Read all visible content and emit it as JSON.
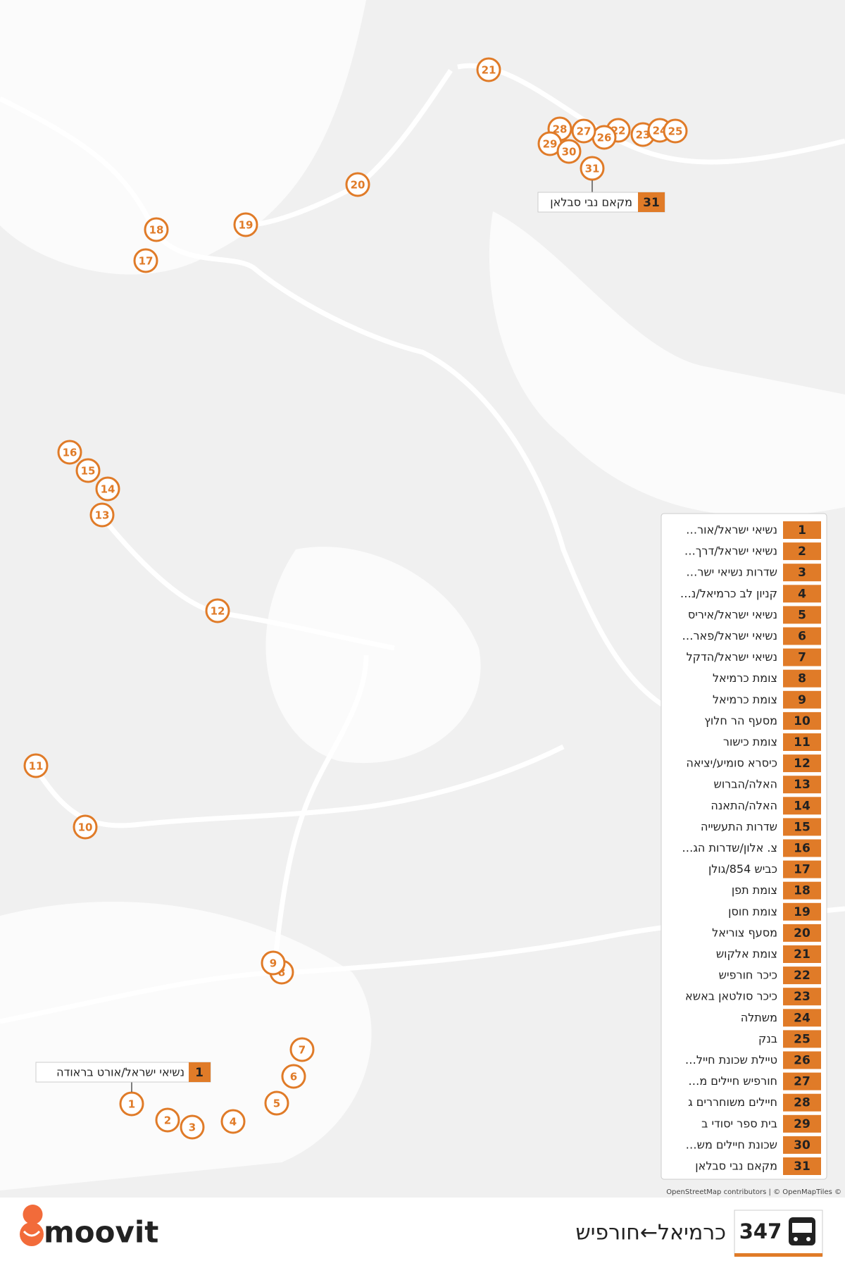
{
  "route": {
    "number": "347",
    "name": "כרמיאל←חורפיש"
  },
  "brand": "moovit",
  "attribution": "OpenStreetMap contributors | © OpenMapTiles ©",
  "first_stop": {
    "number": "1",
    "name": "נשיאי ישראל/אורט בראודה"
  },
  "last_stop": {
    "number": "31",
    "name": "מקאם נבי סבלאן"
  },
  "stops": [
    {
      "number": "1",
      "name": "נשיאי ישראל/אור…"
    },
    {
      "number": "2",
      "name": "נשיאי ישראל/דרך…"
    },
    {
      "number": "3",
      "name": "שדרות נשיאי ישר…"
    },
    {
      "number": "4",
      "name": "קניון לב כרמיאל/נ…"
    },
    {
      "number": "5",
      "name": "נשיאי ישראל/איריס"
    },
    {
      "number": "6",
      "name": "נשיאי ישראל/פאר…"
    },
    {
      "number": "7",
      "name": "נשיאי ישראל/הדקל"
    },
    {
      "number": "8",
      "name": "צומת כרמיאל"
    },
    {
      "number": "9",
      "name": "צומת כרמיאל"
    },
    {
      "number": "10",
      "name": "מסעף הר חלוץ"
    },
    {
      "number": "11",
      "name": "צומת כישור"
    },
    {
      "number": "12",
      "name": "כיסרא סומיע/יציאה"
    },
    {
      "number": "13",
      "name": "האלה/הברוש"
    },
    {
      "number": "14",
      "name": "האלה/התאנה"
    },
    {
      "number": "15",
      "name": "שדרות התעשייה"
    },
    {
      "number": "16",
      "name": "צ. אלון/שדרות הג…"
    },
    {
      "number": "17",
      "name": "כביש 854/גולן"
    },
    {
      "number": "18",
      "name": "צומת תפן"
    },
    {
      "number": "19",
      "name": "צומת חוסן"
    },
    {
      "number": "20",
      "name": "מסעף צוריאל"
    },
    {
      "number": "21",
      "name": "צומת אלקוש"
    },
    {
      "number": "22",
      "name": "כיכר חורפיש"
    },
    {
      "number": "23",
      "name": "כיכר סולטאן באשא"
    },
    {
      "number": "24",
      "name": "משתלה"
    },
    {
      "number": "25",
      "name": "בנק"
    },
    {
      "number": "26",
      "name": "טיילת שכונת חייל…"
    },
    {
      "number": "27",
      "name": "חורפיש חיילים מ…"
    },
    {
      "number": "28",
      "name": "חיילים משוחררים ג"
    },
    {
      "number": "29",
      "name": "בית ספר יסודי ב"
    },
    {
      "number": "30",
      "name": "שכונת חיילים מש…"
    },
    {
      "number": "31",
      "name": "מקאם נבי סבלאן"
    }
  ]
}
